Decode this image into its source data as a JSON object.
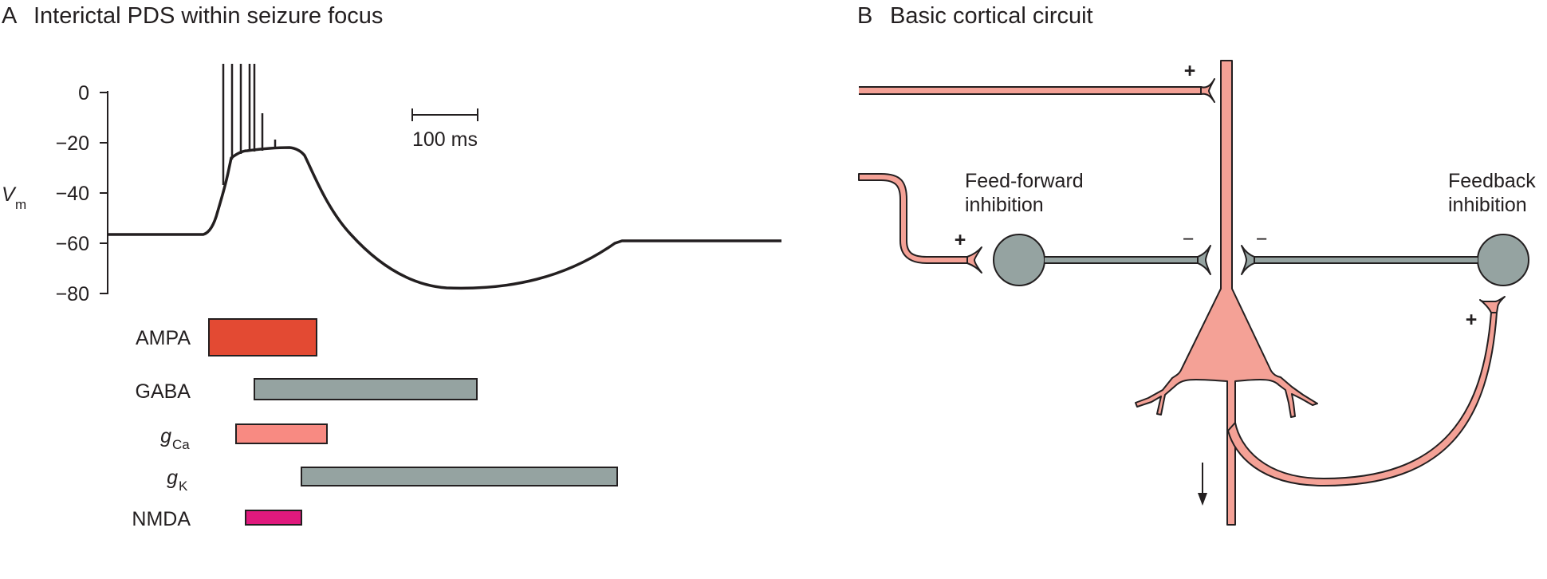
{
  "panel_a": {
    "letter": "A",
    "title": "Interictal PDS within seizure focus",
    "y_axis": {
      "label_main": "V",
      "label_sub": "m",
      "ticks": [
        "0",
        "−20",
        "−40",
        "−60",
        "−80"
      ]
    },
    "scale_bar": "100 ms",
    "bars": [
      {
        "label_main": "AMPA",
        "label_sub": "",
        "italic": false,
        "color": "#e34a33"
      },
      {
        "label_main": "GABA",
        "label_sub": "",
        "italic": false,
        "color": "#95a3a1"
      },
      {
        "label_main": "g",
        "label_sub": "Ca",
        "italic": true,
        "color": "#f88a82"
      },
      {
        "label_main": "g",
        "label_sub": "K",
        "italic": true,
        "color": "#95a3a1"
      },
      {
        "label_main": "NMDA",
        "label_sub": "",
        "italic": false,
        "color": "#e0197d"
      }
    ]
  },
  "panel_b": {
    "letter": "B",
    "title": "Basic cortical circuit",
    "feed_forward": [
      "Feed-forward",
      "inhibition"
    ],
    "feedback": [
      "Feedback",
      "inhibition"
    ],
    "sign_plus": "+",
    "sign_minus": "−",
    "colors": {
      "excitatory": "#f4a196",
      "inhibitory": "#95a3a1",
      "outline": "#231f20"
    }
  }
}
